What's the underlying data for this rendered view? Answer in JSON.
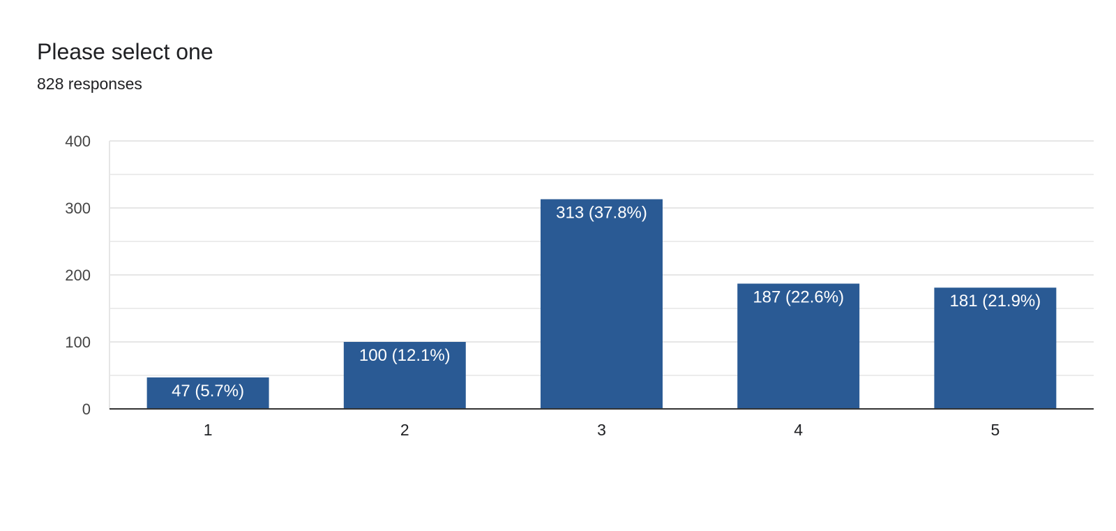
{
  "header": {
    "question": "Please select one",
    "responses": "828 responses"
  },
  "colors": {
    "bar": "#2a5a94",
    "gridline": "#e6e6e6",
    "baseline": "#333333"
  },
  "chart_data": {
    "type": "bar",
    "categories": [
      "1",
      "2",
      "3",
      "4",
      "5"
    ],
    "values": [
      47,
      100,
      313,
      187,
      181
    ],
    "data_labels": [
      "47 (5.7%)",
      "100 (12.1%)",
      "313 (37.8%)",
      "187 (22.6%)",
      "181 (21.9%)"
    ],
    "yticks": [
      0,
      100,
      200,
      300,
      400
    ],
    "ylim": [
      0,
      400
    ],
    "grid": true,
    "title": "Please select one",
    "subtitle": "828 responses",
    "xlabel": "",
    "ylabel": ""
  }
}
